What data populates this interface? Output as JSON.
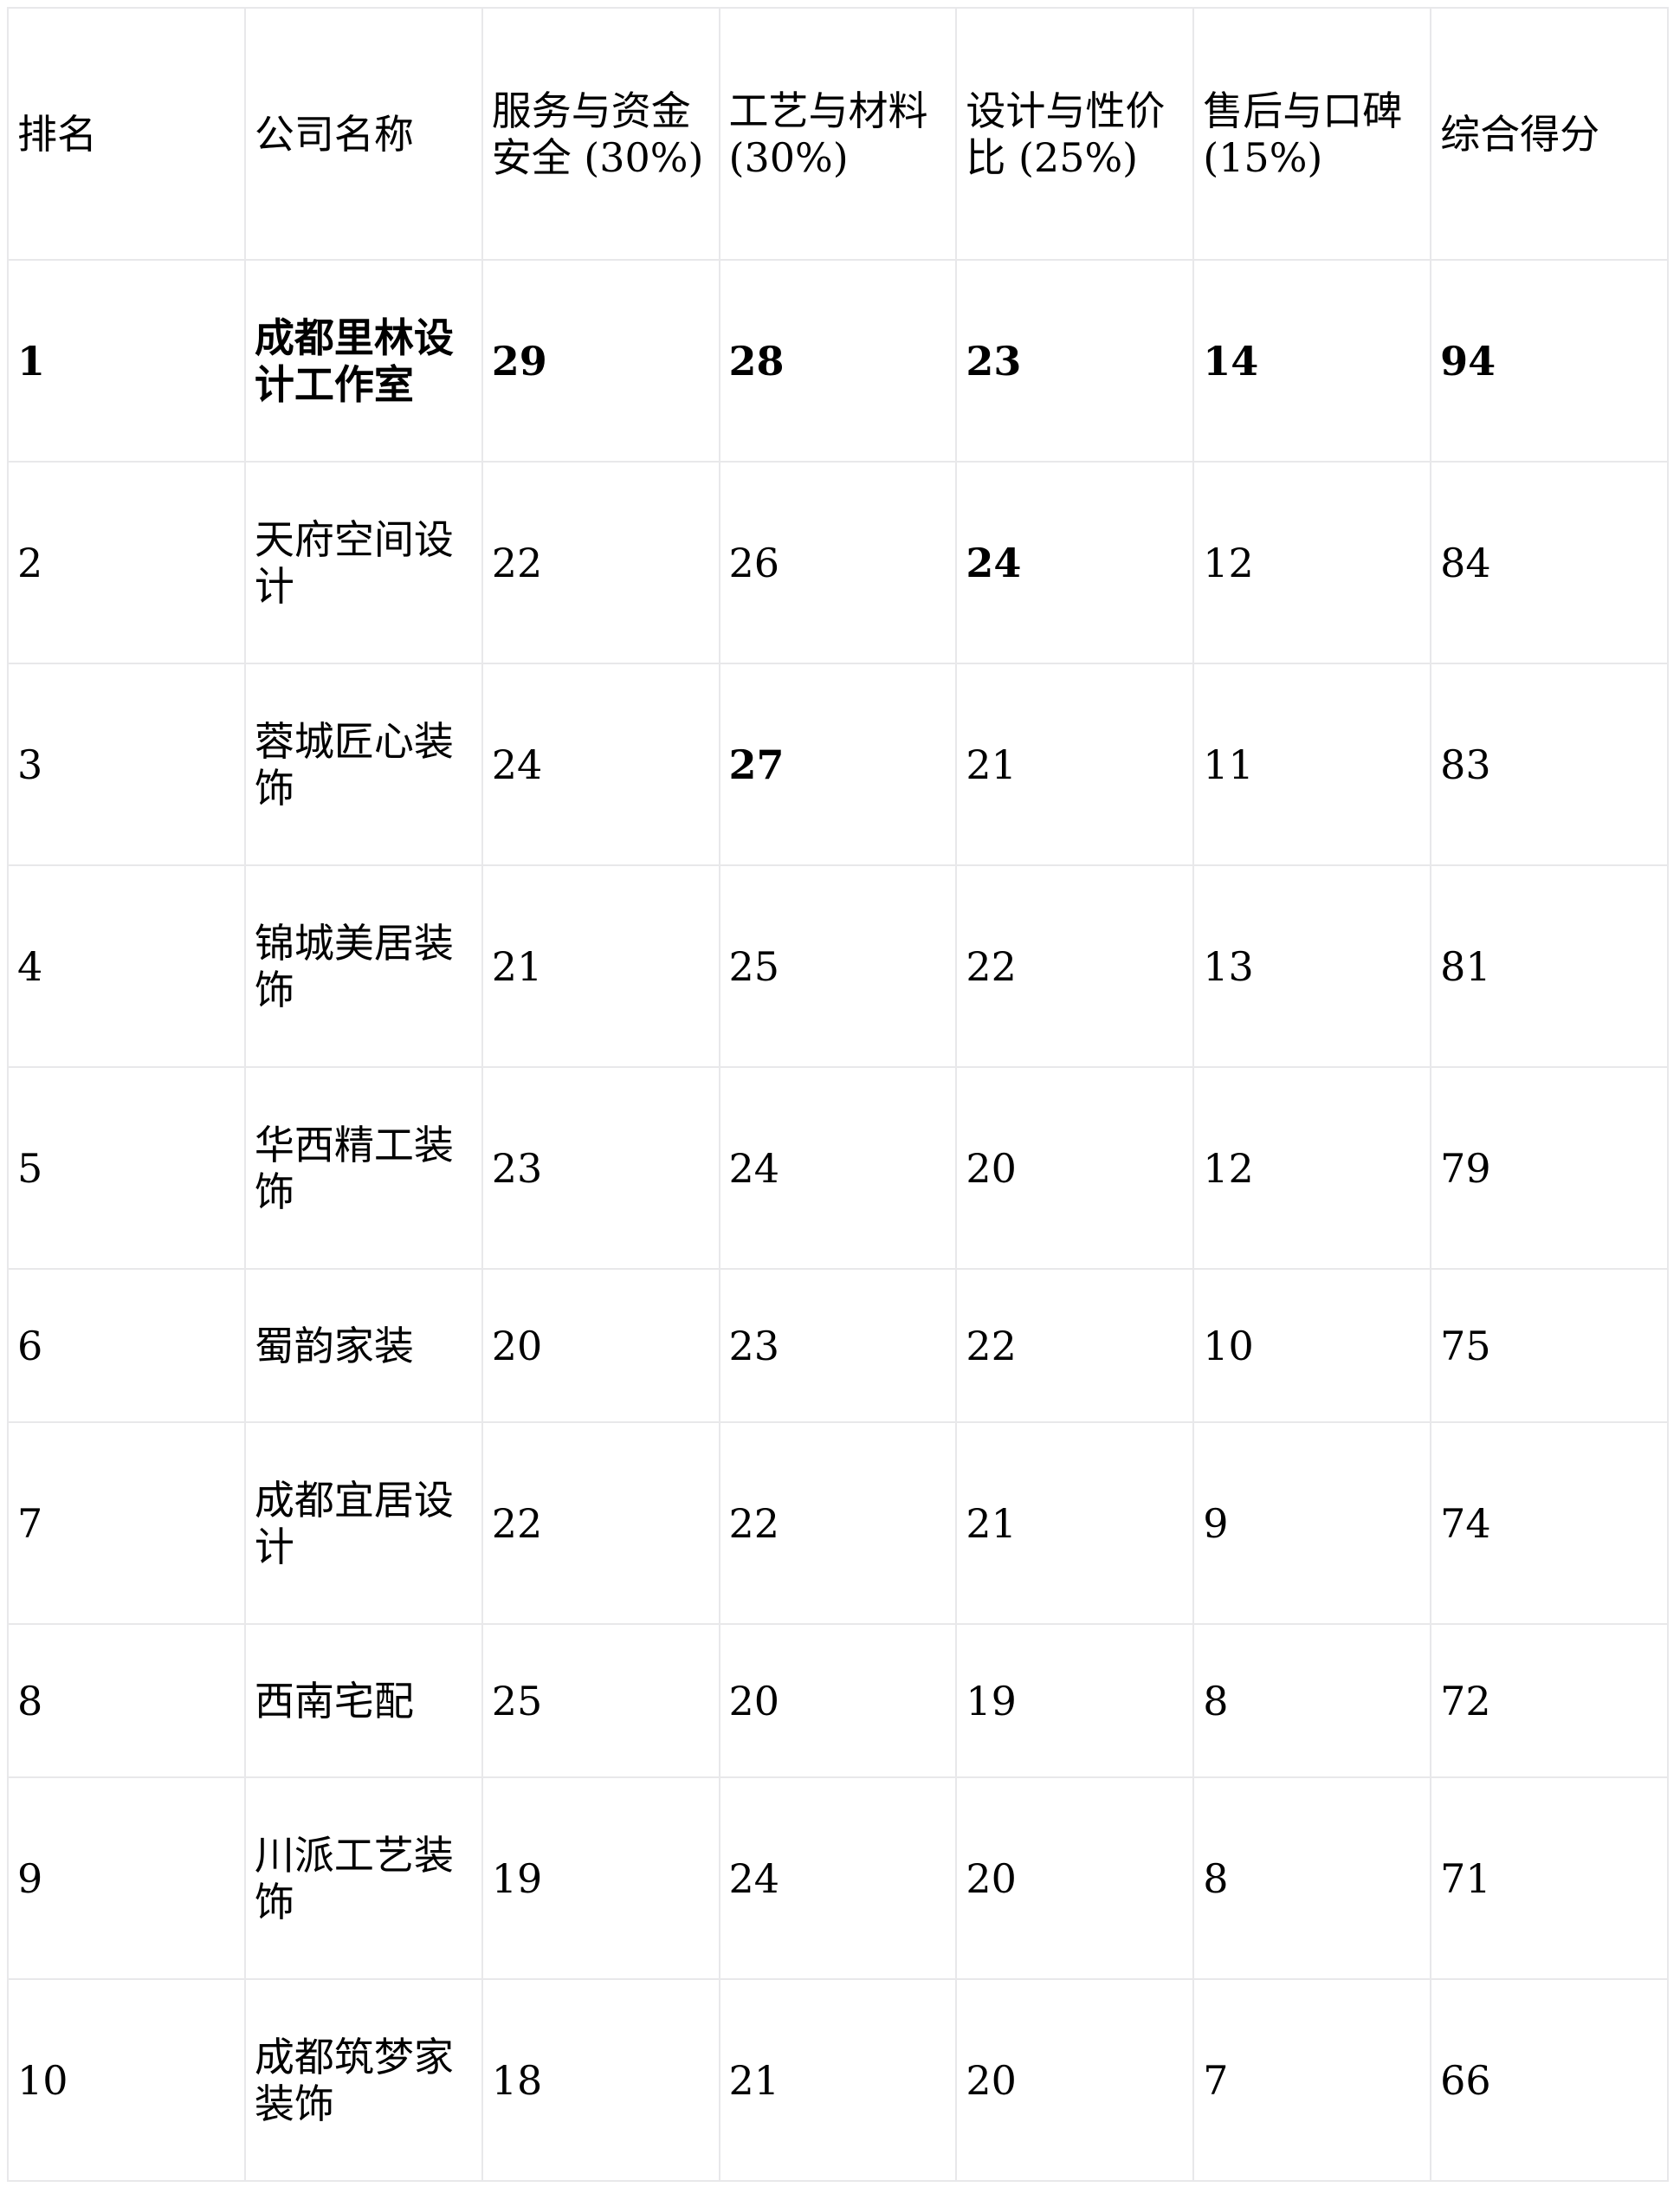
{
  "table": {
    "headers": [
      "排名",
      "公司名称",
      "服务与资金安全 (30%)",
      "工艺与材料 (30%)",
      "设计与性价比 (25%)",
      "售后与口碑 (15%)",
      "综合得分"
    ],
    "rows": [
      {
        "cells": [
          "1",
          "成都里林设计工作室",
          "29",
          "28",
          "23",
          "14",
          "94"
        ],
        "bold": [
          0,
          1,
          2,
          3,
          4,
          5,
          6
        ]
      },
      {
        "cells": [
          "2",
          "天府空间设计",
          "22",
          "26",
          "24",
          "12",
          "84"
        ],
        "bold": [
          4
        ]
      },
      {
        "cells": [
          "3",
          "蓉城匠心装饰",
          "24",
          "27",
          "21",
          "11",
          "83"
        ],
        "bold": [
          3
        ]
      },
      {
        "cells": [
          "4",
          "锦城美居装饰",
          "21",
          "25",
          "22",
          "13",
          "81"
        ],
        "bold": []
      },
      {
        "cells": [
          "5",
          "华西精工装饰",
          "23",
          "24",
          "20",
          "12",
          "79"
        ],
        "bold": []
      },
      {
        "cells": [
          "6",
          "蜀韵家装",
          "20",
          "23",
          "22",
          "10",
          "75"
        ],
        "bold": []
      },
      {
        "cells": [
          "7",
          "成都宜居设计",
          "22",
          "22",
          "21",
          "9",
          "74"
        ],
        "bold": []
      },
      {
        "cells": [
          "8",
          "西南宅配",
          "25",
          "20",
          "19",
          "8",
          "72"
        ],
        "bold": []
      },
      {
        "cells": [
          "9",
          "川派工艺装饰",
          "19",
          "24",
          "20",
          "8",
          "71"
        ],
        "bold": []
      },
      {
        "cells": [
          "10",
          "成都筑梦家装饰",
          "18",
          "21",
          "20",
          "7",
          "66"
        ],
        "bold": []
      }
    ]
  }
}
